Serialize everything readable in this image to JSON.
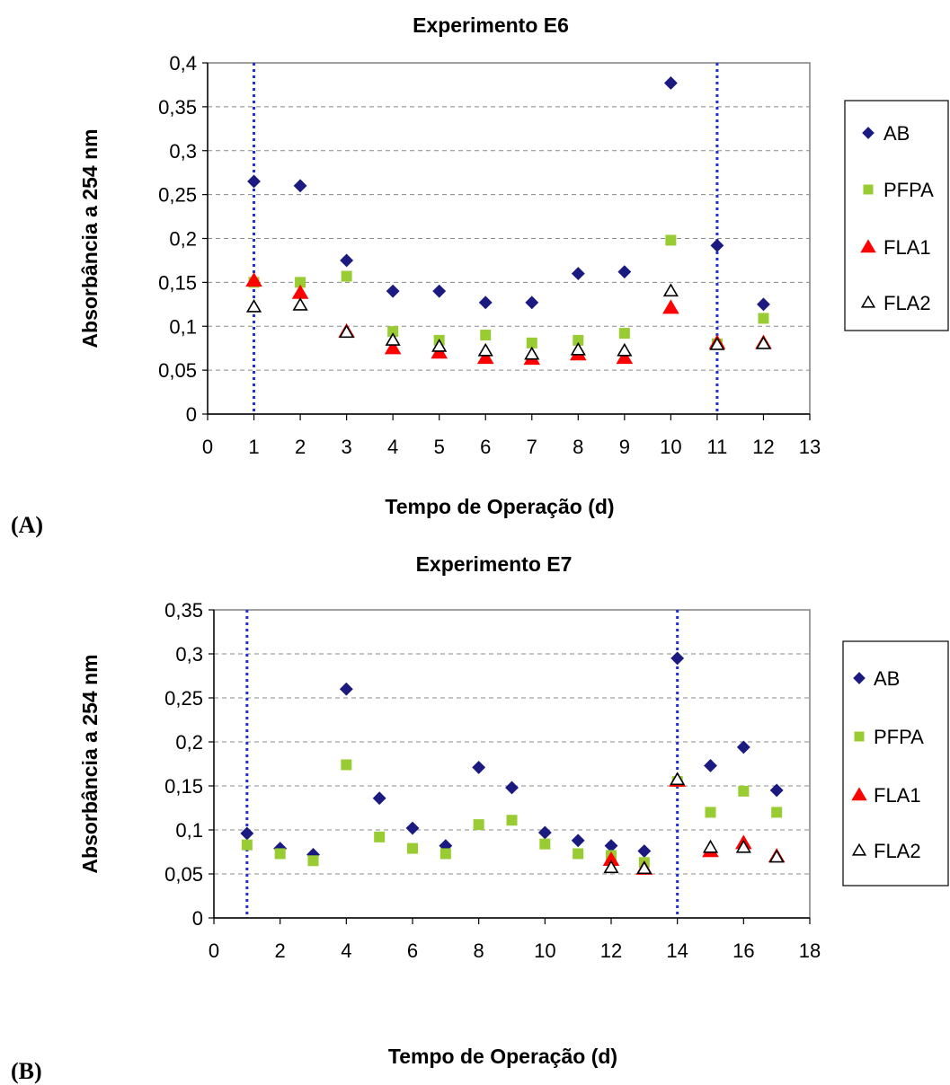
{
  "panel_labels": [
    "(A)",
    "(B)"
  ],
  "chart_data": [
    {
      "type": "scatter",
      "title": "Experimento E6",
      "xlabel": "Tempo de Operação (d)",
      "ylabel": "Absorbância a 254 nm",
      "xlim": [
        0,
        13
      ],
      "ylim": [
        0,
        0.4
      ],
      "x_ticks": [
        "0",
        "1",
        "2",
        "3",
        "4",
        "5",
        "6",
        "7",
        "8",
        "9",
        "10",
        "11",
        "12",
        "13"
      ],
      "y_ticks": [
        "0",
        "0,05",
        "0,1",
        "0,15",
        "0,2",
        "0,25",
        "0,3",
        "0,35",
        "0,4"
      ],
      "grid": "horizontal dashed",
      "legend_position": "right",
      "vertical_markers_x": [
        1,
        11
      ],
      "vertical_marker_color": "#1f2ed6",
      "series": [
        {
          "name": "AB",
          "marker": "diamond",
          "color": "#1a1a80",
          "x": [
            1,
            2,
            3,
            4,
            5,
            6,
            7,
            8,
            9,
            10,
            11,
            12
          ],
          "y": [
            0.265,
            0.26,
            0.175,
            0.14,
            0.14,
            0.127,
            0.127,
            0.16,
            0.162,
            0.377,
            0.192,
            0.125
          ]
        },
        {
          "name": "PFPA",
          "marker": "square",
          "color": "#99cc33",
          "x": [
            1,
            2,
            3,
            4,
            5,
            6,
            7,
            8,
            9,
            10,
            11,
            12
          ],
          "y": [
            0.15,
            0.15,
            0.157,
            0.094,
            0.084,
            0.09,
            0.081,
            0.084,
            0.092,
            0.198,
            0.08,
            0.109
          ]
        },
        {
          "name": "FLA1",
          "marker": "triangle-filled",
          "color": "#ff0000",
          "x": [
            1,
            2,
            3,
            4,
            5,
            6,
            7,
            8,
            9,
            10,
            11,
            12
          ],
          "y": [
            0.152,
            0.138,
            0.094,
            0.075,
            0.07,
            0.064,
            0.063,
            0.068,
            0.064,
            0.121,
            0.081,
            0.081
          ]
        },
        {
          "name": "FLA2",
          "marker": "triangle-open",
          "color": "#000000",
          "x": [
            1,
            2,
            3,
            4,
            5,
            6,
            7,
            8,
            9,
            10,
            11,
            12
          ],
          "y": [
            0.122,
            0.124,
            0.093,
            0.084,
            0.077,
            0.072,
            0.068,
            0.073,
            0.072,
            0.14,
            0.079,
            0.08
          ]
        }
      ]
    },
    {
      "type": "scatter",
      "title": "Experimento E7",
      "xlabel": "Tempo de Operação (d)",
      "ylabel": "Absorbância a 254 nm",
      "xlim": [
        0,
        18
      ],
      "ylim": [
        0,
        0.35
      ],
      "x_ticks": [
        "0",
        "2",
        "4",
        "6",
        "8",
        "10",
        "12",
        "14",
        "16",
        "18"
      ],
      "y_ticks": [
        "0",
        "0,05",
        "0,1",
        "0,15",
        "0,2",
        "0,25",
        "0,3",
        "0,35"
      ],
      "grid": "horizontal dashed",
      "legend_position": "right",
      "vertical_markers_x": [
        1,
        14
      ],
      "vertical_marker_color": "#1f2ed6",
      "series": [
        {
          "name": "AB",
          "marker": "diamond",
          "color": "#1a1a80",
          "x": [
            1,
            2,
            3,
            4,
            5,
            6,
            7,
            8,
            9,
            10,
            11,
            12,
            13,
            14,
            15,
            16,
            17
          ],
          "y": [
            0.096,
            0.079,
            0.072,
            0.26,
            0.136,
            0.102,
            0.082,
            0.171,
            0.148,
            0.097,
            0.088,
            0.082,
            0.076,
            0.295,
            0.173,
            0.194,
            0.145
          ]
        },
        {
          "name": "PFPA",
          "marker": "square",
          "color": "#99cc33",
          "x": [
            1,
            2,
            3,
            4,
            5,
            6,
            7,
            8,
            9,
            10,
            11,
            12,
            13,
            14,
            15,
            16,
            17
          ],
          "y": [
            0.083,
            0.073,
            0.065,
            0.174,
            0.092,
            0.079,
            0.073,
            0.106,
            0.111,
            0.084,
            0.073,
            0.071,
            0.063,
            0.155,
            0.12,
            0.144,
            0.12
          ]
        },
        {
          "name": "FLA1",
          "marker": "triangle-filled",
          "color": "#ff0000",
          "x": [
            12,
            13,
            14,
            15,
            16,
            17
          ],
          "y": [
            0.066,
            0.056,
            0.156,
            0.076,
            0.085,
            0.07
          ]
        },
        {
          "name": "FLA2",
          "marker": "triangle-open",
          "color": "#000000",
          "x": [
            12,
            13,
            14,
            15,
            16,
            17
          ],
          "y": [
            0.057,
            0.056,
            0.157,
            0.08,
            0.08,
            0.069
          ]
        }
      ]
    }
  ]
}
